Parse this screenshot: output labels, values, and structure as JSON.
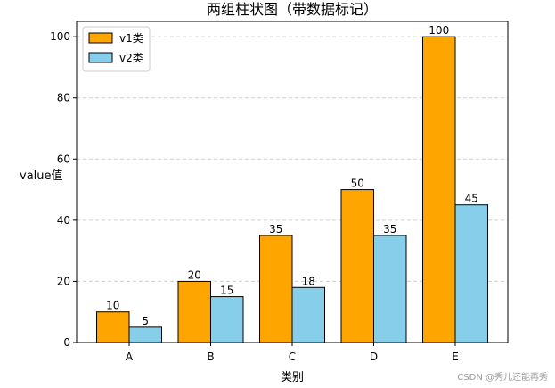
{
  "chart_data": {
    "type": "bar",
    "title": "两组柱状图（带数据标记）",
    "xlabel": "类别",
    "ylabel": "value值",
    "categories": [
      "A",
      "B",
      "C",
      "D",
      "E"
    ],
    "series": [
      {
        "name": "v1类",
        "values": [
          10,
          20,
          35,
          50,
          100
        ],
        "color": "#FFA500"
      },
      {
        "name": "v2类",
        "values": [
          5,
          15,
          18,
          35,
          45
        ],
        "color": "#87CEEB"
      }
    ],
    "ylim": [
      0,
      105
    ],
    "yticks": [
      0,
      20,
      40,
      60,
      80,
      100
    ],
    "grid": "y-dashed",
    "legend_position": "top-left",
    "bar_edge_color": "#000000"
  },
  "watermark": "CSDN @秀儿还能再秀"
}
